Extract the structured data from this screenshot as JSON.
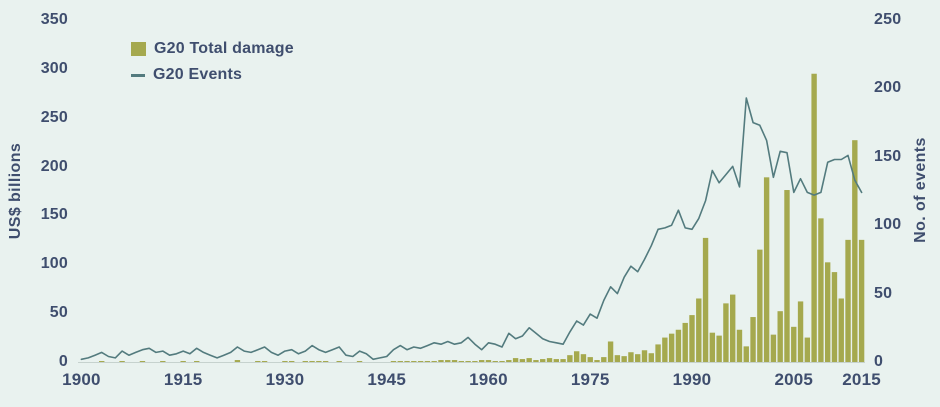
{
  "colors": {
    "background": "#e9f2ef",
    "bar": "#a5a94e",
    "line": "#537b7e",
    "text": "#3f4e6e",
    "baseline": "#c6d2ce"
  },
  "chart_data": {
    "type": "bar+line",
    "title": "",
    "grid": "off",
    "legend_position": "top-left",
    "left_axis": {
      "label": "US$ billions",
      "min": 0,
      "max": 350,
      "ticks": [
        0,
        50,
        100,
        150,
        200,
        250,
        300,
        350
      ]
    },
    "right_axis": {
      "label": "No. of events",
      "min": 0,
      "max": 250,
      "ticks": [
        0,
        50,
        100,
        150,
        200,
        250
      ]
    },
    "x_axis": {
      "min": 1900,
      "max": 2015,
      "ticks": [
        1900,
        1915,
        1930,
        1945,
        1960,
        1975,
        1990,
        2005,
        2015
      ]
    },
    "legend": [
      {
        "label": "G20 Total damage",
        "type": "bar",
        "color": "#a5a94e"
      },
      {
        "label": "G20 Events",
        "type": "line",
        "color": "#537b7e"
      }
    ],
    "years": [
      1900,
      1901,
      1902,
      1903,
      1904,
      1905,
      1906,
      1907,
      1908,
      1909,
      1910,
      1911,
      1912,
      1913,
      1914,
      1915,
      1916,
      1917,
      1918,
      1919,
      1920,
      1921,
      1922,
      1923,
      1924,
      1925,
      1926,
      1927,
      1928,
      1929,
      1930,
      1931,
      1932,
      1933,
      1934,
      1935,
      1936,
      1937,
      1938,
      1939,
      1940,
      1941,
      1942,
      1943,
      1944,
      1945,
      1946,
      1947,
      1948,
      1949,
      1950,
      1951,
      1952,
      1953,
      1954,
      1955,
      1956,
      1957,
      1958,
      1959,
      1960,
      1961,
      1962,
      1963,
      1964,
      1965,
      1966,
      1967,
      1968,
      1969,
      1970,
      1971,
      1972,
      1973,
      1974,
      1975,
      1976,
      1977,
      1978,
      1979,
      1980,
      1981,
      1982,
      1983,
      1984,
      1985,
      1986,
      1987,
      1988,
      1989,
      1990,
      1991,
      1992,
      1993,
      1994,
      1995,
      1996,
      1997,
      1998,
      1999,
      2000,
      2001,
      2002,
      2003,
      2004,
      2005,
      2006,
      2007,
      2008,
      2009,
      2010,
      2011,
      2012,
      2013,
      2014,
      2015
    ],
    "series": [
      {
        "name": "G20 Total damage",
        "type": "bar",
        "axis": "left",
        "unit": "US$ billions",
        "color": "#a5a94e",
        "values": [
          0,
          0,
          0,
          1,
          0,
          0,
          1,
          0,
          0,
          1,
          0,
          0,
          1,
          0,
          0,
          1,
          0,
          1,
          0,
          0,
          0,
          0,
          0,
          2,
          0,
          0,
          1,
          1,
          0,
          0,
          1,
          1,
          0,
          1,
          1,
          1,
          1,
          0,
          1,
          0,
          0,
          1,
          0,
          0,
          0,
          0,
          1,
          1,
          1,
          1,
          1,
          1,
          1,
          2,
          2,
          2,
          1,
          1,
          1,
          2,
          2,
          1,
          1,
          2,
          4,
          3,
          4,
          2,
          3,
          4,
          3,
          3,
          7,
          11,
          8,
          5,
          2,
          5,
          21,
          7,
          6,
          10,
          8,
          12,
          9,
          18,
          25,
          29,
          33,
          40,
          48,
          65,
          127,
          30,
          27,
          60,
          69,
          33,
          16,
          46,
          115,
          189,
          28,
          52,
          176,
          36,
          62,
          25,
          295,
          147,
          102,
          92,
          65,
          125,
          227,
          125
        ]
      },
      {
        "name": "G20 Events",
        "type": "line",
        "axis": "right",
        "unit": "events",
        "color": "#537b7e",
        "values": [
          2,
          3,
          5,
          7,
          4,
          3,
          8,
          5,
          7,
          9,
          10,
          7,
          8,
          5,
          6,
          8,
          6,
          10,
          7,
          5,
          3,
          5,
          7,
          11,
          8,
          7,
          9,
          11,
          7,
          5,
          8,
          9,
          6,
          8,
          12,
          9,
          7,
          9,
          11,
          5,
          4,
          8,
          6,
          2,
          3,
          4,
          9,
          12,
          9,
          11,
          10,
          12,
          14,
          13,
          15,
          13,
          14,
          18,
          13,
          9,
          14,
          13,
          11,
          21,
          17,
          19,
          25,
          21,
          17,
          15,
          14,
          13,
          22,
          30,
          27,
          35,
          32,
          45,
          55,
          50,
          62,
          70,
          66,
          75,
          85,
          97,
          98,
          100,
          111,
          98,
          97,
          105,
          118,
          140,
          131,
          137,
          143,
          128,
          193,
          175,
          173,
          162,
          135,
          154,
          153,
          124,
          134,
          124,
          122,
          124,
          146,
          148,
          148,
          151,
          133,
          124
        ]
      }
    ]
  }
}
